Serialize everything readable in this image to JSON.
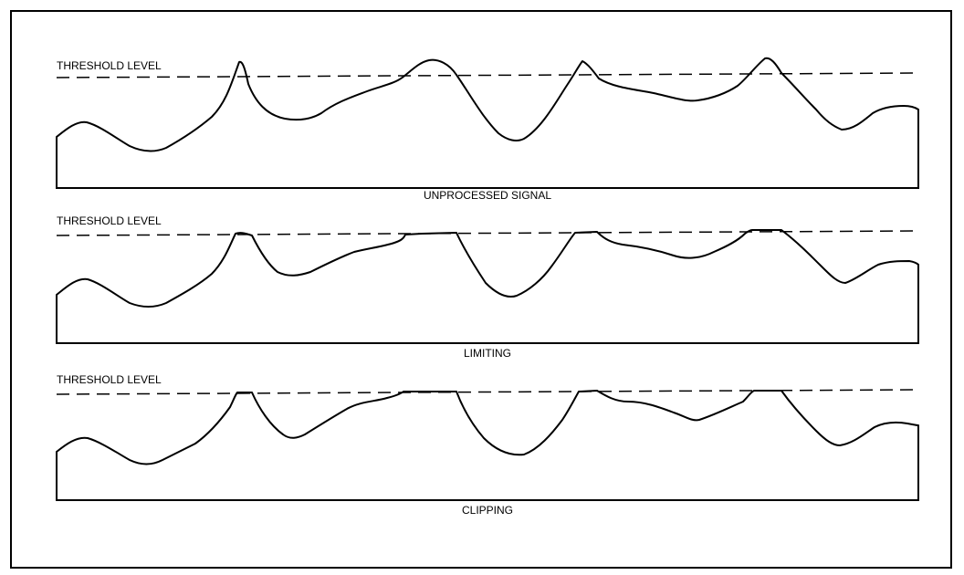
{
  "panels": [
    {
      "threshold_label": "THRESHOLD LEVEL",
      "caption": "UNPROCESSED SIGNAL"
    },
    {
      "threshold_label": "THRESHOLD LEVEL",
      "caption": "LIMITING"
    },
    {
      "threshold_label": "THRESHOLD LEVEL",
      "caption": "CLIPPING"
    }
  ]
}
